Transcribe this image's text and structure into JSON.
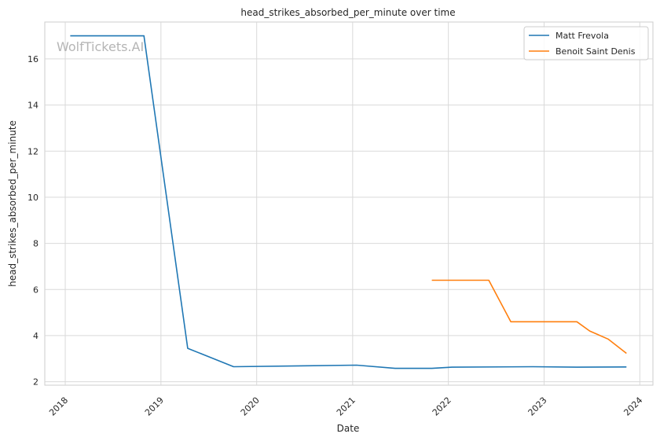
{
  "chart_data": {
    "type": "line",
    "title": "head_strikes_absorbed_per_minute over time",
    "xlabel": "Date",
    "ylabel": "head_strikes_absorbed_per_minute",
    "watermark": "WolfTickets.AI",
    "xlim": [
      "2017-10-15",
      "2024-02-20"
    ],
    "ylim": [
      1.85,
      17.6
    ],
    "x_ticks": [
      "2018",
      "2019",
      "2020",
      "2021",
      "2022",
      "2023",
      "2024"
    ],
    "y_ticks": [
      "2",
      "4",
      "6",
      "8",
      "10",
      "12",
      "14",
      "16"
    ],
    "grid": true,
    "legend_position": "top-right",
    "series": [
      {
        "name": "Matt Frevola",
        "color": "#1f77b4",
        "points": [
          [
            "2018-01-20",
            17.0
          ],
          [
            "2018-10-28",
            17.0
          ],
          [
            "2019-04-13",
            3.45
          ],
          [
            "2019-10-05",
            2.65
          ],
          [
            "2021-01-16",
            2.72
          ],
          [
            "2021-06-12",
            2.58
          ],
          [
            "2021-10-30",
            2.58
          ],
          [
            "2022-01-15",
            2.63
          ],
          [
            "2022-11-19",
            2.65
          ],
          [
            "2023-05-06",
            2.63
          ],
          [
            "2023-11-11",
            2.64
          ]
        ]
      },
      {
        "name": "Benoit Saint Denis",
        "color": "#ff7f0e",
        "points": [
          [
            "2021-10-30",
            6.4
          ],
          [
            "2022-06-04",
            6.4
          ],
          [
            "2022-08-27",
            4.6
          ],
          [
            "2023-05-06",
            4.6
          ],
          [
            "2023-06-24",
            4.2
          ],
          [
            "2023-09-02",
            3.85
          ],
          [
            "2023-11-11",
            3.23
          ]
        ]
      }
    ]
  }
}
